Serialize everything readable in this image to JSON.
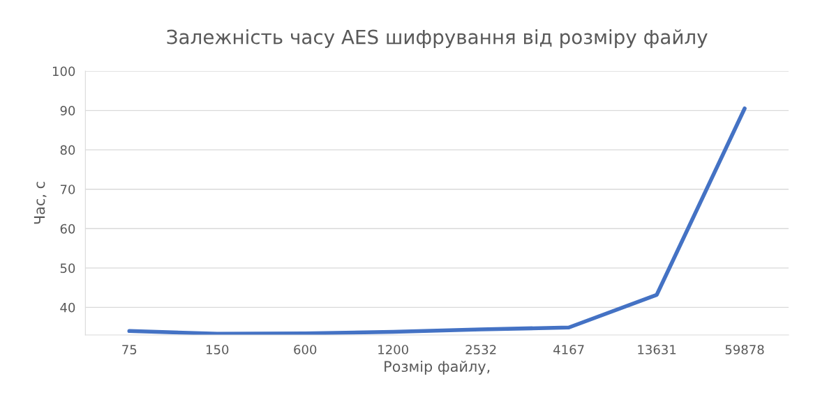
{
  "chart_data": {
    "type": "line",
    "title": "Залежність часу AES шифрування від розміру файлу",
    "xlabel": "Розмір файлу,",
    "ylabel": "Час, с",
    "categories": [
      "75",
      "150",
      "600",
      "1200",
      "2532",
      "4167",
      "13631",
      "59878"
    ],
    "series": [
      {
        "color": "#4472c4",
        "values": [
          34.0,
          33.3,
          33.4,
          33.8,
          34.4,
          34.9,
          43.2,
          90.5
        ]
      }
    ],
    "ylim": [
      33,
      100
    ],
    "yticks": [
      40,
      50,
      60,
      70,
      80,
      90,
      100
    ],
    "grid": "y",
    "marker": "none",
    "line_style": "solid"
  }
}
